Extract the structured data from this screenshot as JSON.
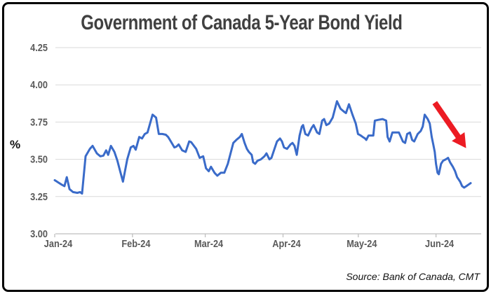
{
  "frame": {
    "border_color": "#000000",
    "background": "#ffffff"
  },
  "chart_data": {
    "type": "line",
    "title": "Government of Canada 5-Year Bond Yield",
    "ylabel": "%",
    "source": "Source: Bank of Canada, CMT",
    "ylim": [
      3.0,
      4.25
    ],
    "y_ticks": [
      "4.25",
      "4.00",
      "3.75",
      "3.50",
      "3.25",
      "3.00"
    ],
    "y_tick_values": [
      4.25,
      4.0,
      3.75,
      3.5,
      3.25,
      3.0
    ],
    "x_tick_labels": [
      "Jan-24",
      "Feb-24",
      "Mar-24",
      "Apr-24",
      "May-24",
      "Jun-24"
    ],
    "x_tick_days": [
      0,
      31,
      60,
      91,
      121,
      152
    ],
    "x_axis_end_day": 170,
    "grid": true,
    "legend": "none",
    "series": [
      {
        "points": [
          [
            0,
            3.36
          ],
          [
            1.4,
            3.345
          ],
          [
            2.8,
            3.33
          ],
          [
            3.9,
            3.32
          ],
          [
            4.8,
            3.38
          ],
          [
            5.9,
            3.3
          ],
          [
            7.3,
            3.28
          ],
          [
            9,
            3.275
          ],
          [
            10.1,
            3.28
          ],
          [
            10.9,
            3.27
          ],
          [
            12.3,
            3.52
          ],
          [
            14,
            3.57
          ],
          [
            15.1,
            3.59
          ],
          [
            16.8,
            3.54
          ],
          [
            18.2,
            3.52
          ],
          [
            19.4,
            3.525
          ],
          [
            20.5,
            3.56
          ],
          [
            21.3,
            3.53
          ],
          [
            22.4,
            3.59
          ],
          [
            23.8,
            3.55
          ],
          [
            25,
            3.49
          ],
          [
            26.1,
            3.42
          ],
          [
            27.2,
            3.35
          ],
          [
            28.9,
            3.5
          ],
          [
            30.3,
            3.58
          ],
          [
            31.4,
            3.59
          ],
          [
            32.3,
            3.565
          ],
          [
            33.7,
            3.65
          ],
          [
            34.8,
            3.64
          ],
          [
            35.9,
            3.67
          ],
          [
            37,
            3.68
          ],
          [
            39,
            3.8
          ],
          [
            40.4,
            3.78
          ],
          [
            41.5,
            3.67
          ],
          [
            42.9,
            3.67
          ],
          [
            44.3,
            3.665
          ],
          [
            45.2,
            3.65
          ],
          [
            46.3,
            3.62
          ],
          [
            47.7,
            3.58
          ],
          [
            48.5,
            3.585
          ],
          [
            49.4,
            3.6
          ],
          [
            50.8,
            3.56
          ],
          [
            52.2,
            3.55
          ],
          [
            53.6,
            3.62
          ],
          [
            54.4,
            3.615
          ],
          [
            55.5,
            3.59
          ],
          [
            56.4,
            3.57
          ],
          [
            57.8,
            3.51
          ],
          [
            59.2,
            3.52
          ],
          [
            60.3,
            3.44
          ],
          [
            61.4,
            3.42
          ],
          [
            62.3,
            3.45
          ],
          [
            63.7,
            3.41
          ],
          [
            64.8,
            3.39
          ],
          [
            66.2,
            3.41
          ],
          [
            67.6,
            3.41
          ],
          [
            69,
            3.47
          ],
          [
            70.1,
            3.54
          ],
          [
            71.2,
            3.61
          ],
          [
            72.4,
            3.63
          ],
          [
            73.8,
            3.65
          ],
          [
            74.6,
            3.67
          ],
          [
            75.7,
            3.61
          ],
          [
            76.6,
            3.57
          ],
          [
            77.4,
            3.55
          ],
          [
            78.5,
            3.53
          ],
          [
            79.1,
            3.48
          ],
          [
            79.9,
            3.47
          ],
          [
            80.8,
            3.49
          ],
          [
            82.2,
            3.5
          ],
          [
            83.6,
            3.52
          ],
          [
            84.4,
            3.54
          ],
          [
            85.6,
            3.5
          ],
          [
            86.4,
            3.51
          ],
          [
            87.8,
            3.58
          ],
          [
            88.6,
            3.62
          ],
          [
            89.8,
            3.64
          ],
          [
            90.6,
            3.62
          ],
          [
            91.4,
            3.58
          ],
          [
            92.6,
            3.57
          ],
          [
            94,
            3.6
          ],
          [
            94.8,
            3.61
          ],
          [
            95.6,
            3.59
          ],
          [
            96.5,
            3.53
          ],
          [
            97.6,
            3.66
          ],
          [
            98.5,
            3.72
          ],
          [
            99,
            3.73
          ],
          [
            99.9,
            3.67
          ],
          [
            101,
            3.66
          ],
          [
            102.4,
            3.71
          ],
          [
            103.2,
            3.73
          ],
          [
            104.6,
            3.68
          ],
          [
            105.5,
            3.67
          ],
          [
            106.6,
            3.76
          ],
          [
            107.4,
            3.77
          ],
          [
            108.3,
            3.73
          ],
          [
            109.4,
            3.74
          ],
          [
            110.8,
            3.78
          ],
          [
            112.5,
            3.89
          ],
          [
            113.9,
            3.84
          ],
          [
            115.3,
            3.82
          ],
          [
            116.1,
            3.81
          ],
          [
            117.3,
            3.87
          ],
          [
            118.7,
            3.8
          ],
          [
            120,
            3.74
          ],
          [
            120.9,
            3.67
          ],
          [
            122,
            3.66
          ],
          [
            122.8,
            3.65
          ],
          [
            123.7,
            3.64
          ],
          [
            124.2,
            3.63
          ],
          [
            125.1,
            3.66
          ],
          [
            126.2,
            3.66
          ],
          [
            127,
            3.66
          ],
          [
            127.6,
            3.76
          ],
          [
            129,
            3.765
          ],
          [
            130.7,
            3.77
          ],
          [
            132.1,
            3.76
          ],
          [
            132.7,
            3.65
          ],
          [
            133.5,
            3.62
          ],
          [
            134.6,
            3.68
          ],
          [
            136,
            3.68
          ],
          [
            137.2,
            3.68
          ],
          [
            138.8,
            3.62
          ],
          [
            139.7,
            3.61
          ],
          [
            140.5,
            3.67
          ],
          [
            141.6,
            3.68
          ],
          [
            142.5,
            3.63
          ],
          [
            143.3,
            3.62
          ],
          [
            144.7,
            3.67
          ],
          [
            145.9,
            3.69
          ],
          [
            146.7,
            3.72
          ],
          [
            147.5,
            3.8
          ],
          [
            148.7,
            3.77
          ],
          [
            149.5,
            3.74
          ],
          [
            150.3,
            3.65
          ],
          [
            150.9,
            3.6
          ],
          [
            151.5,
            3.55
          ],
          [
            152,
            3.47
          ],
          [
            152.6,
            3.41
          ],
          [
            153.1,
            3.4
          ],
          [
            154,
            3.47
          ],
          [
            154.8,
            3.49
          ],
          [
            155.9,
            3.5
          ],
          [
            156.8,
            3.51
          ],
          [
            157.6,
            3.48
          ],
          [
            158.7,
            3.45
          ],
          [
            159.6,
            3.42
          ],
          [
            160.4,
            3.38
          ],
          [
            161.6,
            3.35
          ],
          [
            162.4,
            3.32
          ],
          [
            163.2,
            3.31
          ],
          [
            164.1,
            3.32
          ],
          [
            164.9,
            3.33
          ],
          [
            165.8,
            3.34
          ]
        ]
      }
    ],
    "annotation_arrow": {
      "from": [
        151.5,
        3.88
      ],
      "to": [
        164,
        3.575
      ],
      "color": "#EC1B23"
    },
    "colors": {
      "line": "#3A6BC9",
      "grid": "#D9D9D9",
      "axis": "#BFBFBF",
      "title": "#404040",
      "ticks": "#595959",
      "source": "#111111"
    }
  }
}
